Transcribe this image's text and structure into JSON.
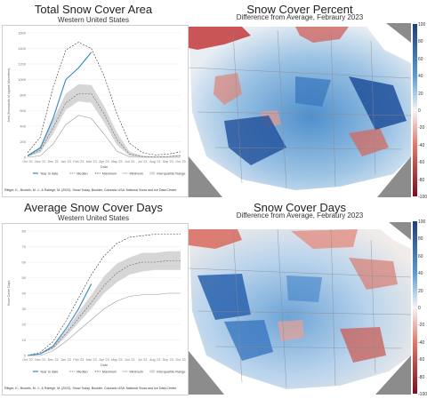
{
  "panels": {
    "area": {
      "title": "Total Snow Cover Area",
      "subtitle": "Western United States",
      "credit": "Rittger, K., Brodzik, M. J., & Raleigh, M. (2023). Snow Today. Boulder, Colorado USA: National Snow and Ice Data Center."
    },
    "percent_map": {
      "title": "Snow Cover Percent",
      "subtitle": "Difference from Average, Febraury 2023"
    },
    "days": {
      "title": "Average Snow Cover Days",
      "subtitle": "Western United States",
      "credit": "Rittger, K., Brodzik, M. J., & Raleigh, M. (2023). Snow Today. Boulder, Colorado USA: National Snow and Ice Data Center."
    },
    "days_map": {
      "title": "Snow Cover Days",
      "subtitle": "Difference from Average, Febraury 2023"
    }
  },
  "colorbar": {
    "ticks": [
      "100",
      "80",
      "60",
      "40",
      "20",
      "0",
      "-20",
      "-40",
      "-60",
      "-80",
      "-100"
    ],
    "colors": {
      "high": "#1f3f7a",
      "mid_high": "#5a9bd0",
      "zero": "#f5f5f5",
      "mid_low": "#e0796b",
      "low": "#7a1020"
    }
  },
  "legend": {
    "items": [
      {
        "label": "Year to date",
        "color": "#2e86c1",
        "style": "solid"
      },
      {
        "label": "Median",
        "color": "#666666",
        "style": "dashed"
      },
      {
        "label": "Maximum",
        "color": "#333333",
        "style": "dashed"
      },
      {
        "label": "Minimum",
        "color": "#999999",
        "style": "solid"
      },
      {
        "label": "Interquartile Range",
        "color": "#d6d6d6",
        "style": "band"
      }
    ]
  },
  "chart_data": [
    {
      "type": "line",
      "title": "Total Snow Cover Area",
      "subtitle": "Western United States",
      "xlabel": "Date",
      "ylabel": "Area (thousands of square kilometers)",
      "x": [
        "Oct '22",
        "Nov '22",
        "Dec '22",
        "Jan '23",
        "Feb '23",
        "Mar '23",
        "Apr '23",
        "May '23",
        "Jun '23",
        "Jul '23",
        "Aug '23",
        "Sep '23",
        "Oct '23"
      ],
      "ylim": [
        0,
        1600
      ],
      "yticks": [
        0,
        200,
        400,
        600,
        800,
        1000,
        1200,
        1400,
        1600
      ],
      "series": [
        {
          "name": "Year to date",
          "values": [
            20,
            120,
            500,
            1000,
            1150,
            1350,
            null,
            null,
            null,
            null,
            null,
            null,
            null
          ]
        },
        {
          "name": "Median",
          "values": [
            15,
            90,
            380,
            700,
            820,
            820,
            560,
            230,
            40,
            10,
            5,
            10,
            20
          ]
        },
        {
          "name": "Maximum",
          "values": [
            60,
            260,
            900,
            1380,
            1480,
            1400,
            1050,
            560,
            180,
            60,
            30,
            40,
            70
          ]
        },
        {
          "name": "Minimum",
          "values": [
            0,
            20,
            170,
            420,
            540,
            500,
            300,
            80,
            5,
            0,
            0,
            0,
            0
          ]
        },
        {
          "name": "Interquartile Range",
          "low": [
            8,
            60,
            300,
            610,
            720,
            700,
            450,
            160,
            20,
            5,
            2,
            5,
            10
          ],
          "high": [
            25,
            140,
            480,
            820,
            940,
            930,
            660,
            320,
            70,
            20,
            10,
            15,
            30
          ]
        }
      ]
    },
    {
      "type": "line",
      "title": "Average Snow Cover Days",
      "subtitle": "Western United States",
      "xlabel": "Date",
      "ylabel": "Snow Cover Days",
      "x": [
        "Oct '22",
        "Nov '22",
        "Dec '22",
        "Jan '23",
        "Feb '23",
        "Mar '23",
        "Apr '23",
        "May '23",
        "Jun '23",
        "Jul '23",
        "Aug '23",
        "Sep '23",
        "Oct '23"
      ],
      "ylim": [
        0,
        80
      ],
      "yticks": [
        0,
        10,
        20,
        30,
        40,
        50,
        60,
        70,
        80
      ],
      "series": [
        {
          "name": "Year to date",
          "values": [
            0,
            1,
            6,
            17,
            30,
            46,
            null,
            null,
            null,
            null,
            null,
            null,
            null
          ]
        },
        {
          "name": "Median",
          "values": [
            0,
            1,
            5,
            14,
            24,
            34,
            45,
            53,
            58,
            60,
            60,
            61,
            61
          ]
        },
        {
          "name": "Maximum",
          "values": [
            0,
            2,
            9,
            22,
            37,
            52,
            64,
            72,
            76,
            77,
            78,
            78,
            78
          ]
        },
        {
          "name": "Minimum",
          "values": [
            0,
            0,
            3,
            9,
            16,
            23,
            30,
            35,
            38,
            39,
            39,
            40,
            40
          ]
        },
        {
          "name": "Interquartile Range",
          "low": [
            0,
            1,
            4,
            12,
            21,
            30,
            40,
            47,
            52,
            54,
            55,
            55,
            55
          ],
          "high": [
            0,
            1,
            6,
            16,
            28,
            39,
            51,
            59,
            63,
            66,
            66,
            67,
            67
          ]
        }
      ]
    }
  ]
}
